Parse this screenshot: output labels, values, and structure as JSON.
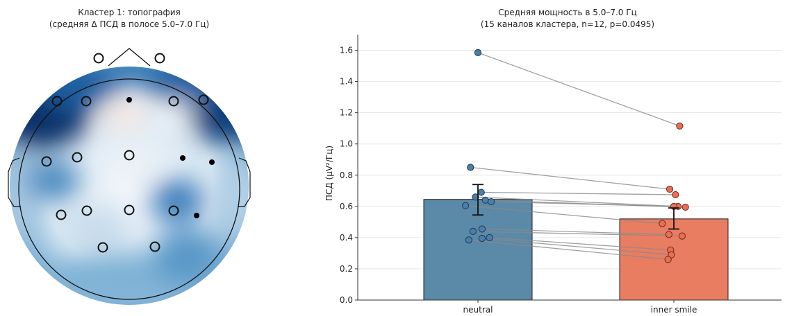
{
  "chart_data": [
    {
      "type": "topomap",
      "title_line1": "Кластер 1: топография",
      "title_line2": "(средняя Δ ПСД в полосе 5.0–7.0 Гц)",
      "cluster_channels_marker": "open-circle",
      "other_channels_marker": "filled-dot",
      "colormap": "blue-white-red (RdBu_r)",
      "colors": {
        "negative": "#08306b",
        "neutral": "#f7f7f7",
        "positive": "#fbe3d6"
      }
    },
    {
      "type": "bar",
      "title_line1": "Средняя мощность в 5.0–7.0 Гц",
      "title_line2": "(15 каналов кластера, n=12, p=0.0495)",
      "ylabel": "ПСД (μV²/Гц)",
      "ylim": [
        0.0,
        1.7
      ],
      "yticks": [
        0.0,
        0.2,
        0.4,
        0.6,
        0.8,
        1.0,
        1.2,
        1.4,
        1.6
      ],
      "ytick_labels": [
        "0.0",
        "0.2",
        "0.4",
        "0.6",
        "0.8",
        "1.0",
        "1.2",
        "1.4",
        "1.6"
      ],
      "grid": "horizontal",
      "categories": [
        "neutral",
        "inner smile"
      ],
      "bars": [
        {
          "category": "neutral",
          "mean": 0.645,
          "err_low": 0.545,
          "err_high": 0.74,
          "color": "#5b89a8"
        },
        {
          "category": "inner smile",
          "mean": 0.52,
          "err_low": 0.455,
          "err_high": 0.59,
          "color": "#e87d62"
        }
      ],
      "paired_points": [
        {
          "neutral": 1.585,
          "inner_smile": 1.115
        },
        {
          "neutral": 0.85,
          "inner_smile": 0.71
        },
        {
          "neutral": 0.69,
          "inner_smile": 0.675
        },
        {
          "neutral": 0.66,
          "inner_smile": 0.6
        },
        {
          "neutral": 0.64,
          "inner_smile": 0.595
        },
        {
          "neutral": 0.63,
          "inner_smile": 0.6
        },
        {
          "neutral": 0.605,
          "inner_smile": 0.49
        },
        {
          "neutral": 0.455,
          "inner_smile": 0.42
        },
        {
          "neutral": 0.44,
          "inner_smile": 0.41
        },
        {
          "neutral": 0.4,
          "inner_smile": 0.32
        },
        {
          "neutral": 0.395,
          "inner_smile": 0.29
        },
        {
          "neutral": 0.385,
          "inner_smile": 0.26
        }
      ]
    }
  ]
}
